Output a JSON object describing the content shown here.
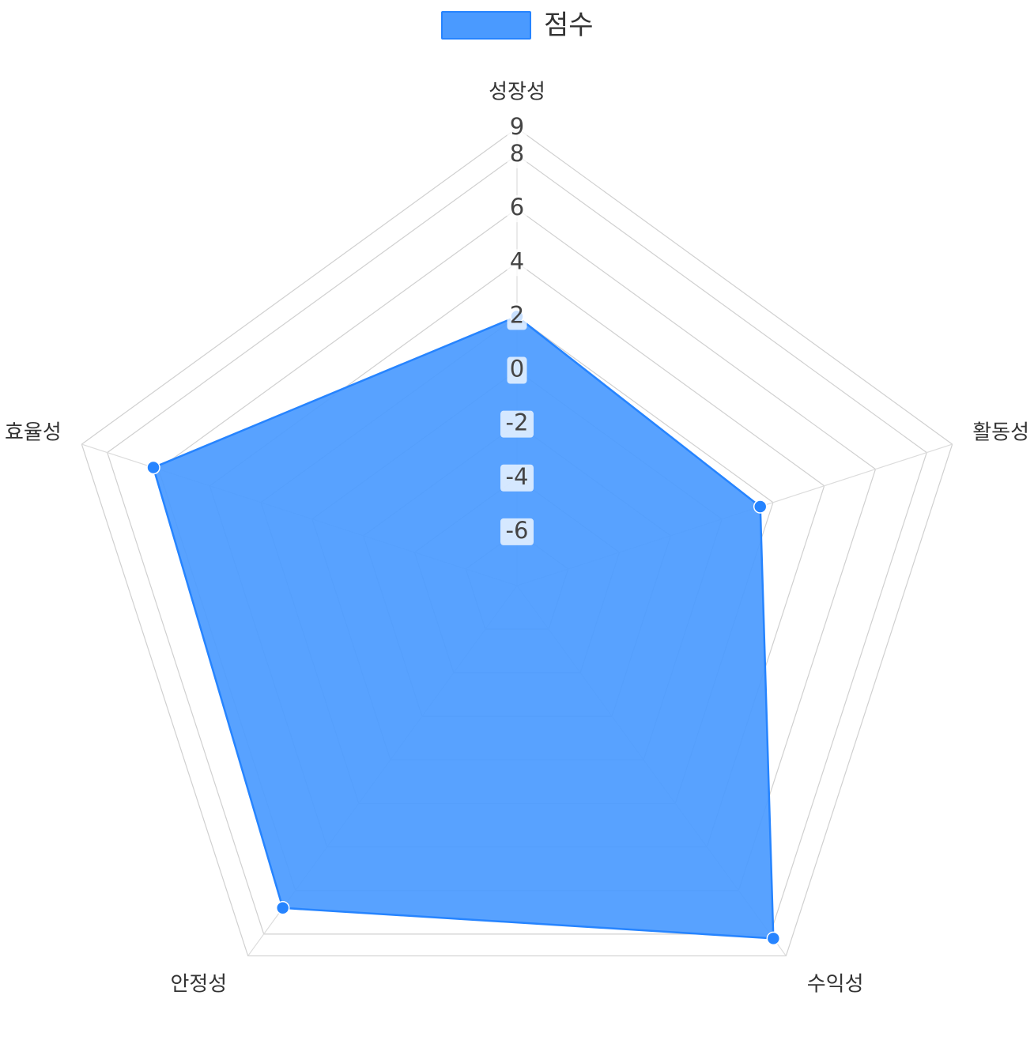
{
  "chart_data": {
    "type": "radar",
    "legend": {
      "position": "top",
      "entries": [
        {
          "label": "점수",
          "color": "#4a9aff"
        }
      ]
    },
    "axes": [
      "성장성",
      "활동성",
      "수익성",
      "안정성",
      "효율성"
    ],
    "scale": {
      "min": -8,
      "max": 9,
      "ticks": [
        -6,
        -4,
        -2,
        0,
        2,
        4,
        6,
        8,
        9
      ]
    },
    "series": [
      {
        "name": "점수",
        "values": [
          2,
          1.5,
          8.2,
          6.8,
          6.2
        ],
        "color": "#2684ff",
        "fill": "#4a9aff"
      }
    ],
    "grid": true
  }
}
